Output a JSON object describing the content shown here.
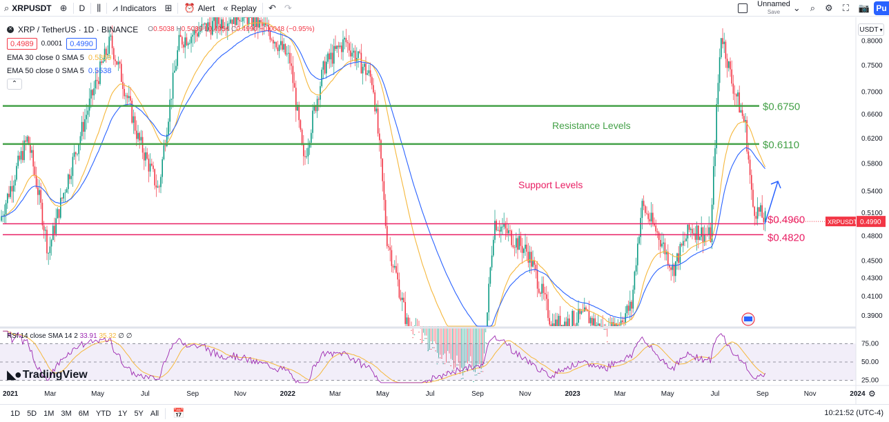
{
  "toolbar": {
    "symbol": "XRPUSDT",
    "interval": "D",
    "indicators_label": "Indicators",
    "alert_label": "Alert",
    "replay_label": "Replay",
    "layout_name": "Unnamed",
    "layout_save": "Save",
    "publish_label": "Pu"
  },
  "legend": {
    "title": "XRP / TetherUS · 1D · BINANCE",
    "ohlc": [
      {
        "k": "O",
        "v": "0.5038"
      },
      {
        "k": "H",
        "v": "0.5039"
      },
      {
        "k": "L",
        "v": "0.4954"
      },
      {
        "k": "C",
        "v": "0.4990"
      }
    ],
    "change": "−0.0048 (−0.95%)",
    "bid": "0.4989",
    "spread": "0.0001",
    "ask": "0.4990",
    "ema30_label": "EMA 30 close 0 SMA 5",
    "ema30_value": "0.5359",
    "ema50_label": "EMA 50 close 0 SMA 5",
    "ema50_value": "0.5538",
    "rsi_label": "RSI 14 close SMA 14 2",
    "rsi_value": "33.91",
    "rsi_sma_value": "35.32",
    "rsi_extra": "∅  ∅"
  },
  "brand": "TradingView",
  "currency": "USDT",
  "colors": {
    "up": "#089981",
    "down": "#f23645",
    "ema30": "#f5b73b",
    "ema50": "#2962ff",
    "resistance": "#43a047",
    "support": "#e91e63",
    "rsi": "#9c27b0"
  },
  "chart_data": {
    "type": "candlestick",
    "symbol": "XRPUSDT",
    "last_price": 0.499,
    "last_label": "0.4990",
    "tag_label": "XRPUSDT",
    "ylim": [
      0.37,
      0.83
    ],
    "y_ticks": [
      0.39,
      0.41,
      0.43,
      0.45,
      0.48,
      0.51,
      0.54,
      0.58,
      0.62,
      0.66,
      0.7,
      0.75,
      0.8
    ],
    "x_ticks": [
      "2021",
      "Mar",
      "May",
      "Jul",
      "Sep",
      "Nov",
      "2022",
      "Mar",
      "May",
      "Jul",
      "Sep",
      "Nov",
      "2023",
      "Mar",
      "May",
      "Jul",
      "Sep",
      "Nov",
      "2024"
    ],
    "resistance_levels": [
      {
        "value": 0.675,
        "label": "$0.6750"
      },
      {
        "value": 0.611,
        "label": "$0.6110"
      }
    ],
    "support_levels": [
      {
        "value": 0.496,
        "label": "$0.4960"
      },
      {
        "value": 0.482,
        "label": "$0.4820"
      }
    ],
    "annotations": [
      {
        "text": "Resistance Levels"
      },
      {
        "text": "Support Levels"
      }
    ],
    "rsi": {
      "levels": [
        25,
        50,
        75
      ],
      "level_labels": [
        "25.00",
        "50.00",
        "75.00"
      ],
      "last": 33.91,
      "sma_last": 35.32
    }
  },
  "bottombar": {
    "ranges": [
      "1D",
      "5D",
      "1M",
      "3M",
      "6M",
      "YTD",
      "1Y",
      "5Y",
      "All"
    ],
    "clock": "10:21:52 (UTC-4)"
  }
}
